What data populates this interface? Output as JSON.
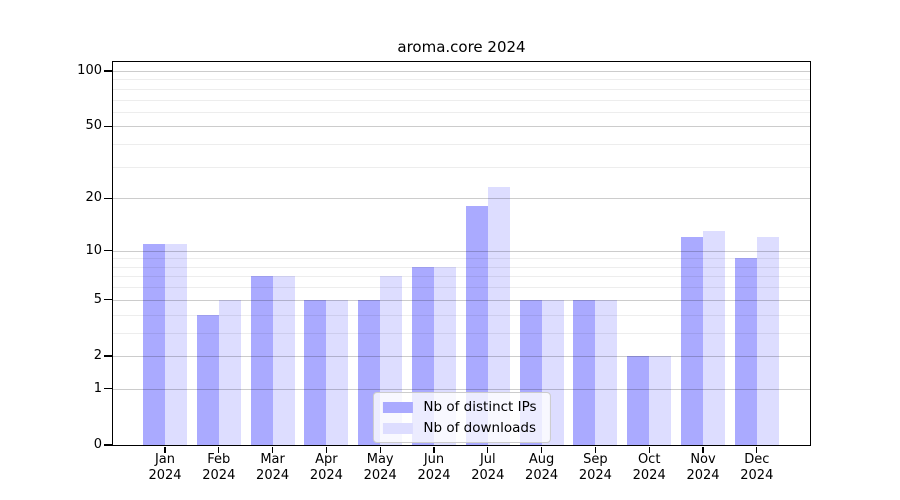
{
  "title": "aroma.core 2024",
  "chart_data": {
    "type": "bar",
    "title": "aroma.core 2024",
    "categories": [
      "Jan 2024",
      "Feb 2024",
      "Mar 2024",
      "Apr 2024",
      "May 2024",
      "Jun 2024",
      "Jul 2024",
      "Aug 2024",
      "Sep 2024",
      "Oct 2024",
      "Nov 2024",
      "Dec 2024"
    ],
    "series": [
      {
        "name": "Nb of distinct IPs",
        "key": "ips",
        "color": "#aaaaff",
        "values": [
          11,
          4,
          7,
          5,
          5,
          8,
          18,
          5,
          5,
          2,
          12,
          9
        ]
      },
      {
        "name": "Nb of downloads",
        "key": "downloads",
        "color": "#ddddff",
        "values": [
          11,
          5,
          7,
          5,
          7,
          8,
          23,
          5,
          5,
          2,
          13,
          12
        ]
      }
    ],
    "y_scale": "log1p",
    "y_tick_values": [
      100,
      50,
      20,
      10,
      5,
      2,
      1,
      0
    ],
    "y_minor_gridlines": [
      3,
      4,
      6,
      7,
      8,
      9,
      30,
      40,
      60,
      70,
      80,
      90
    ],
    "ylim": [
      0,
      110
    ],
    "grid": true,
    "legend_position": "bottom-center",
    "xlabel": "",
    "ylabel": ""
  },
  "colors": {
    "axis": "#000000",
    "major_grid": "#cccccc",
    "minor_grid": "#ededed",
    "legend_border": "#cccccc"
  }
}
